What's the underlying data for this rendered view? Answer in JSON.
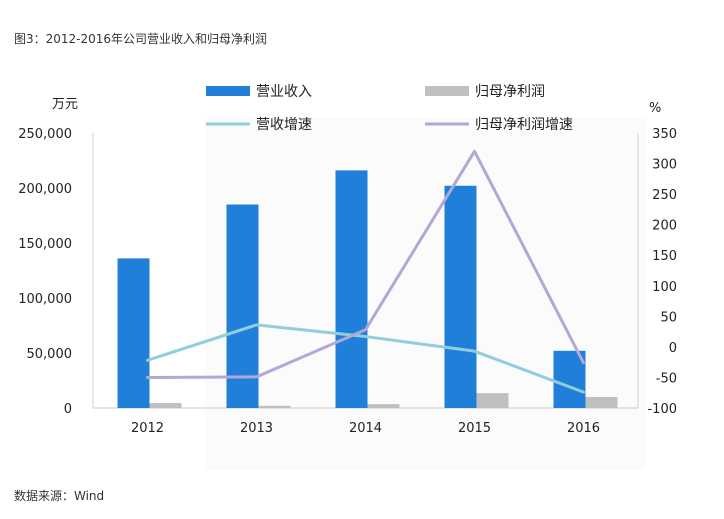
{
  "figure": {
    "title": "图3：2012-2016年公司营业收入和归母净利润",
    "source": "数据来源：Wind"
  },
  "chart_data": {
    "type": "bar",
    "categories": [
      "2012",
      "2013",
      "2014",
      "2015",
      "2016"
    ],
    "left_axis": {
      "unit": "万元",
      "range": [
        0,
        250000
      ],
      "ticks": [
        "0",
        "50,000",
        "100,000",
        "150,000",
        "200,000",
        "250,000"
      ],
      "tick_values": [
        0,
        50000,
        100000,
        150000,
        200000,
        250000
      ]
    },
    "right_axis": {
      "unit": "%",
      "range": [
        -100,
        350
      ],
      "ticks": [
        "-100",
        "-50",
        "0",
        "50",
        "100",
        "150",
        "200",
        "250",
        "300",
        "350"
      ],
      "tick_values": [
        -100,
        -50,
        0,
        50,
        100,
        150,
        200,
        250,
        300,
        350
      ]
    },
    "legend_position": "top",
    "grid": false,
    "series": [
      {
        "name": "营业收入",
        "type": "bar",
        "axis": "left",
        "color": "#1f7fd9",
        "values": [
          136000,
          185000,
          216000,
          202000,
          52000
        ]
      },
      {
        "name": "归母净利润",
        "type": "bar",
        "axis": "left",
        "color": "#bfbfbf",
        "values": [
          4500,
          2000,
          3500,
          13500,
          10000
        ]
      },
      {
        "name": "营收增速",
        "type": "line",
        "axis": "right",
        "color": "#92cddc",
        "values": [
          -22,
          36,
          17,
          -7,
          -74
        ]
      },
      {
        "name": "归母净利润增速",
        "type": "line",
        "axis": "right",
        "color": "#b4a7d6",
        "values": [
          -50,
          -49,
          28,
          320,
          -26
        ]
      }
    ]
  }
}
